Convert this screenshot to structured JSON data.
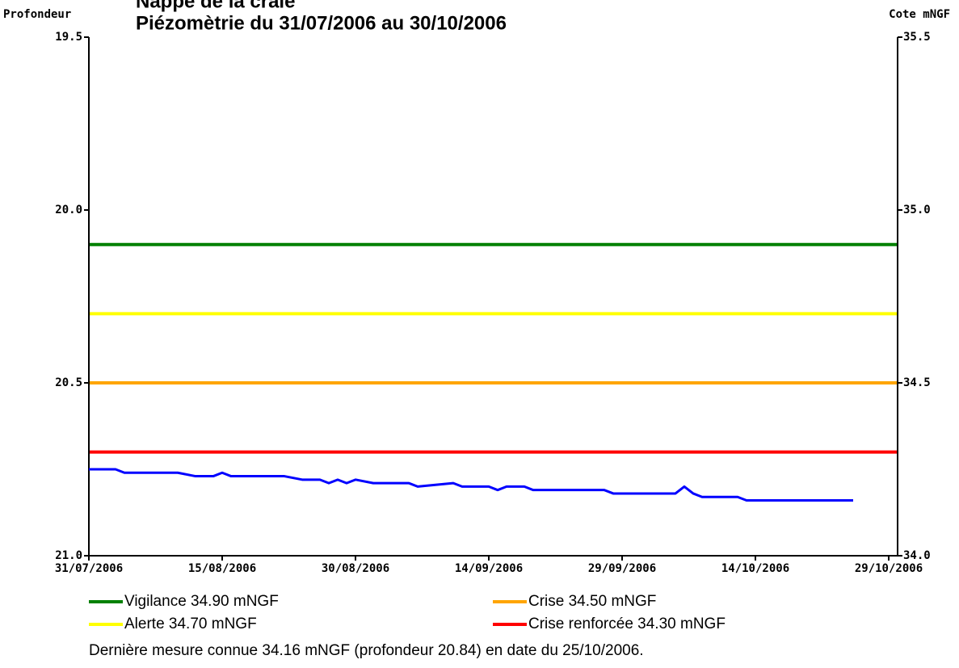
{
  "chart_data": {
    "type": "line",
    "title": "Nappe de la craie",
    "subtitle": "Piézomètrie du 31/07/2006 au 30/10/2006",
    "y_label": "Profondeur",
    "y2_label": "Cote mNGF",
    "xlim": [
      "2006-07-31",
      "2006-10-30"
    ],
    "xticks": [
      {
        "value": "2006-07-31",
        "label": "31/07/2006"
      },
      {
        "value": "2006-08-15",
        "label": "15/08/2006"
      },
      {
        "value": "2006-08-30",
        "label": "30/08/2006"
      },
      {
        "value": "2006-09-14",
        "label": "14/09/2006"
      },
      {
        "value": "2006-09-29",
        "label": "29/09/2006"
      },
      {
        "value": "2006-10-14",
        "label": "14/10/2006"
      },
      {
        "value": "2006-10-29",
        "label": "29/10/2006"
      }
    ],
    "ylim": [
      21.0,
      19.5
    ],
    "yticks": [
      19.5,
      {
        "value": 20.0,
        "label": "20.0"
      },
      20.5,
      {
        "value": 21.0,
        "label": "21.0"
      }
    ],
    "y2lim": [
      34.0,
      35.5
    ],
    "y2ticks": [
      35.5,
      {
        "value": 35.0,
        "label": "35.0"
      },
      34.5,
      {
        "value": 34.0,
        "label": "34.0"
      }
    ],
    "thresholds": [
      {
        "name": "Vigilance 34.90 mNGF",
        "value": 34.9,
        "color": "#008000"
      },
      {
        "name": "Crise 34.50 mNGF",
        "value": 34.5,
        "color": "#ffa500"
      },
      {
        "name": "Alerte 34.70 mNGF",
        "value": 34.7,
        "color": "#ffff00"
      },
      {
        "name": "Crise renforcée 34.30 mNGF",
        "value": 34.3,
        "color": "#ff0000"
      }
    ],
    "series": [
      {
        "color": "#0000ff",
        "axis": "y2",
        "x": [
          "2006-07-31",
          "2006-08-03",
          "2006-08-04",
          "2006-08-10",
          "2006-08-12",
          "2006-08-14",
          "2006-08-15",
          "2006-08-16",
          "2006-08-22",
          "2006-08-24",
          "2006-08-26",
          "2006-08-27",
          "2006-08-28",
          "2006-08-29",
          "2006-08-29",
          "2006-08-30",
          "2006-09-01",
          "2006-09-05",
          "2006-09-06",
          "2006-09-10",
          "2006-09-11",
          "2006-09-14",
          "2006-09-15",
          "2006-09-16",
          "2006-09-18",
          "2006-09-19",
          "2006-09-27",
          "2006-09-28",
          "2006-10-05",
          "2006-10-06",
          "2006-10-07",
          "2006-10-08",
          "2006-10-12",
          "2006-10-13",
          "2006-10-25"
        ],
        "values": [
          34.25,
          34.25,
          34.24,
          34.24,
          34.23,
          34.23,
          34.24,
          34.23,
          34.23,
          34.22,
          34.22,
          34.21,
          34.22,
          34.21,
          34.21,
          34.22,
          34.21,
          34.21,
          34.2,
          34.21,
          34.2,
          34.2,
          34.19,
          34.2,
          34.2,
          34.19,
          34.19,
          34.18,
          34.18,
          34.2,
          34.18,
          34.17,
          34.17,
          34.16,
          34.16
        ]
      }
    ],
    "footer": "Dernière mesure connue 34.16 mNGF (profondeur 20.84) en date du 25/10/2006."
  }
}
